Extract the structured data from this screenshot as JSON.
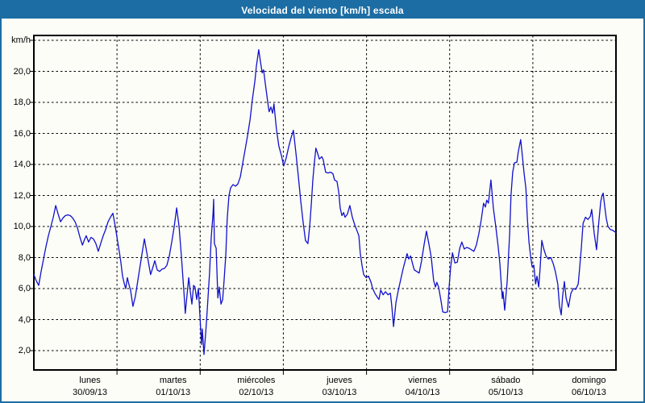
{
  "window": {
    "title": "Velocidad del viento [km/h] escala"
  },
  "colors": {
    "titlebar": "#1c6da3",
    "window_border": "#1c6da3",
    "background": "#fcfdf7",
    "line": "#1111cc",
    "grid": "#000000",
    "text": "#000000",
    "title_text": "#ffffff"
  },
  "chart_data": {
    "type": "line",
    "title": "Velocidad del viento [km/h] escala",
    "ylabel": "km/h",
    "xlabel": "",
    "grid": true,
    "xlim_hours": [
      0,
      168
    ],
    "ylim": [
      0.75,
      22.35
    ],
    "y_ticks": [
      {
        "value": 22,
        "label": "km/h"
      },
      {
        "value": 20,
        "label": "20,0"
      },
      {
        "value": 18,
        "label": "18,0"
      },
      {
        "value": 16,
        "label": "16,0"
      },
      {
        "value": 14,
        "label": "14,0"
      },
      {
        "value": 12,
        "label": "12,0"
      },
      {
        "value": 10,
        "label": "10,0"
      },
      {
        "value": 8,
        "label": "8,0"
      },
      {
        "value": 6,
        "label": "6,0"
      },
      {
        "value": 4,
        "label": "4,0"
      },
      {
        "value": 2,
        "label": "2,0"
      }
    ],
    "x_days": [
      {
        "name": "lunes",
        "date": "30/09/13"
      },
      {
        "name": "martes",
        "date": "01/10/13"
      },
      {
        "name": "miércoles",
        "date": "02/10/13"
      },
      {
        "name": "jueves",
        "date": "03/10/13"
      },
      {
        "name": "viernes",
        "date": "04/10/13"
      },
      {
        "name": "sábado",
        "date": "05/10/13"
      },
      {
        "name": "domingo",
        "date": "06/10/13"
      }
    ],
    "series": {
      "name": "velocidad del viento",
      "unit": "km/h",
      "x_unit": "hours since 30/09/13 00:00",
      "points": [
        [
          0,
          6.9
        ],
        [
          0.7,
          6.5
        ],
        [
          1.4,
          6.2
        ],
        [
          2.1,
          7.1
        ],
        [
          2.8,
          7.9
        ],
        [
          3.5,
          8.7
        ],
        [
          4.2,
          9.4
        ],
        [
          4.9,
          10.0
        ],
        [
          5.6,
          10.6
        ],
        [
          6.3,
          11.35
        ],
        [
          7,
          10.8
        ],
        [
          7.7,
          10.3
        ],
        [
          8.4,
          10.55
        ],
        [
          9.1,
          10.7
        ],
        [
          9.8,
          10.75
        ],
        [
          10.5,
          10.7
        ],
        [
          11.2,
          10.55
        ],
        [
          11.9,
          10.3
        ],
        [
          12.6,
          9.9
        ],
        [
          13.3,
          9.3
        ],
        [
          14,
          8.8
        ],
        [
          14.7,
          9.2
        ],
        [
          15.1,
          9.4
        ],
        [
          15.8,
          9.0
        ],
        [
          16.5,
          9.3
        ],
        [
          17.2,
          9.2
        ],
        [
          17.9,
          8.9
        ],
        [
          18.6,
          8.4
        ],
        [
          19.3,
          8.9
        ],
        [
          20,
          9.4
        ],
        [
          20.7,
          9.8
        ],
        [
          21.4,
          10.3
        ],
        [
          22.1,
          10.6
        ],
        [
          22.8,
          10.85
        ],
        [
          23.5,
          10.0
        ],
        [
          24,
          9.3
        ],
        [
          24.7,
          8.3
        ],
        [
          25.1,
          7.7
        ],
        [
          25.6,
          6.8
        ],
        [
          26.1,
          6.3
        ],
        [
          26.5,
          6.0
        ],
        [
          27,
          6.7
        ],
        [
          27.5,
          6.2
        ],
        [
          27.9,
          5.9
        ],
        [
          28.6,
          4.85
        ],
        [
          29.3,
          5.5
        ],
        [
          30,
          6.5
        ],
        [
          30.7,
          7.5
        ],
        [
          31.4,
          8.5
        ],
        [
          31.9,
          9.2
        ],
        [
          32.6,
          8.3
        ],
        [
          33.3,
          7.4
        ],
        [
          33.7,
          6.9
        ],
        [
          34.4,
          7.4
        ],
        [
          34.9,
          7.8
        ],
        [
          35.6,
          7.2
        ],
        [
          36.3,
          7.1
        ],
        [
          37,
          7.25
        ],
        [
          37.7,
          7.3
        ],
        [
          38.4,
          7.5
        ],
        [
          39.1,
          8.1
        ],
        [
          39.8,
          9.0
        ],
        [
          40.5,
          10.0
        ],
        [
          41.2,
          11.2
        ],
        [
          41.9,
          10.0
        ],
        [
          42.6,
          8.0
        ],
        [
          43.3,
          5.8
        ],
        [
          43.7,
          4.4
        ],
        [
          44.2,
          5.6
        ],
        [
          44.7,
          6.7
        ],
        [
          45.1,
          5.9
        ],
        [
          45.6,
          5.0
        ],
        [
          46.1,
          6.2
        ],
        [
          46.5,
          6.1
        ],
        [
          47,
          5.3
        ],
        [
          47.5,
          6.0
        ],
        [
          47.9,
          4.3
        ],
        [
          48.4,
          2.4
        ],
        [
          48.6,
          3.4
        ],
        [
          49.1,
          1.75
        ],
        [
          49.6,
          3.2
        ],
        [
          50,
          4.5
        ],
        [
          50.7,
          7.0
        ],
        [
          51.2,
          9.3
        ],
        [
          51.7,
          10.8
        ],
        [
          51.9,
          11.75
        ],
        [
          52.1,
          8.9
        ],
        [
          52.6,
          8.6
        ],
        [
          53.1,
          5.4
        ],
        [
          53.5,
          6.1
        ],
        [
          54,
          5.0
        ],
        [
          54.5,
          5.3
        ],
        [
          54.9,
          6.5
        ],
        [
          55.4,
          8.2
        ],
        [
          55.8,
          10.5
        ],
        [
          56.3,
          12.0
        ],
        [
          56.8,
          12.5
        ],
        [
          57.5,
          12.7
        ],
        [
          58.2,
          12.6
        ],
        [
          58.9,
          12.75
        ],
        [
          59.6,
          13.2
        ],
        [
          60.3,
          14.1
        ],
        [
          61,
          15.0
        ],
        [
          61.7,
          15.9
        ],
        [
          62.4,
          16.9
        ],
        [
          63,
          18.1
        ],
        [
          63.8,
          19.4
        ],
        [
          64.2,
          20.3
        ],
        [
          64.9,
          21.4
        ],
        [
          65.4,
          20.6
        ],
        [
          65.9,
          19.9
        ],
        [
          66.3,
          20.1
        ],
        [
          66.8,
          19.2
        ],
        [
          67.5,
          18.0
        ],
        [
          67.9,
          17.4
        ],
        [
          68.4,
          17.7
        ],
        [
          68.9,
          17.3
        ],
        [
          69.3,
          17.9
        ],
        [
          70,
          16.3
        ],
        [
          70.7,
          15.2
        ],
        [
          71.4,
          14.6
        ],
        [
          72.1,
          13.9
        ],
        [
          72.8,
          14.4
        ],
        [
          73.5,
          15.1
        ],
        [
          74.2,
          15.7
        ],
        [
          74.9,
          16.2
        ],
        [
          75.6,
          14.8
        ],
        [
          76.3,
          13.3
        ],
        [
          77,
          11.7
        ],
        [
          77.7,
          10.3
        ],
        [
          78.4,
          9.1
        ],
        [
          79.1,
          8.9
        ],
        [
          79.6,
          10.0
        ],
        [
          80.1,
          11.5
        ],
        [
          80.5,
          13.0
        ],
        [
          81,
          14.2
        ],
        [
          81.4,
          15.05
        ],
        [
          81.9,
          14.7
        ],
        [
          82.4,
          14.35
        ],
        [
          83.1,
          14.5
        ],
        [
          83.5,
          14.3
        ],
        [
          84.2,
          13.5
        ],
        [
          84.9,
          13.45
        ],
        [
          85.6,
          13.5
        ],
        [
          86.3,
          13.4
        ],
        [
          86.8,
          13.0
        ],
        [
          87.5,
          12.9
        ],
        [
          88,
          12.2
        ],
        [
          88.4,
          11.2
        ],
        [
          88.9,
          10.7
        ],
        [
          89.4,
          10.9
        ],
        [
          89.8,
          10.6
        ],
        [
          90.5,
          10.8
        ],
        [
          91.2,
          11.35
        ],
        [
          91.9,
          10.6
        ],
        [
          92.6,
          10.1
        ],
        [
          93.3,
          9.7
        ],
        [
          93.8,
          9.4
        ],
        [
          94.2,
          8.3
        ],
        [
          94.7,
          7.5
        ],
        [
          95.2,
          6.9
        ],
        [
          95.9,
          6.7
        ],
        [
          96.6,
          6.8
        ],
        [
          97.3,
          6.4
        ],
        [
          97.7,
          6.05
        ],
        [
          98.4,
          5.7
        ],
        [
          99.1,
          5.45
        ],
        [
          99.6,
          5.3
        ],
        [
          100.1,
          5.9
        ],
        [
          100.8,
          5.6
        ],
        [
          101.5,
          5.8
        ],
        [
          102.2,
          5.6
        ],
        [
          102.9,
          5.7
        ],
        [
          103.3,
          4.9
        ],
        [
          103.8,
          3.55
        ],
        [
          104.5,
          5.1
        ],
        [
          105.2,
          5.9
        ],
        [
          105.9,
          6.6
        ],
        [
          106.6,
          7.3
        ],
        [
          107.3,
          7.9
        ],
        [
          107.7,
          8.25
        ],
        [
          108.2,
          7.9
        ],
        [
          108.7,
          8.1
        ],
        [
          109.4,
          7.5
        ],
        [
          109.8,
          7.2
        ],
        [
          110.5,
          7.1
        ],
        [
          111.2,
          7.0
        ],
        [
          111.9,
          7.8
        ],
        [
          112.6,
          8.8
        ],
        [
          113.3,
          9.7
        ],
        [
          114,
          8.9
        ],
        [
          114.7,
          8.0
        ],
        [
          115.4,
          6.5
        ],
        [
          115.9,
          6.1
        ],
        [
          116.3,
          6.4
        ],
        [
          116.8,
          6.1
        ],
        [
          117.5,
          5.2
        ],
        [
          118,
          4.5
        ],
        [
          118.7,
          4.45
        ],
        [
          119.4,
          4.5
        ],
        [
          119.8,
          6.0
        ],
        [
          120.3,
          7.4
        ],
        [
          120.8,
          8.3
        ],
        [
          121.5,
          7.65
        ],
        [
          122.2,
          7.7
        ],
        [
          122.9,
          8.6
        ],
        [
          123.5,
          9.0
        ],
        [
          124.2,
          8.55
        ],
        [
          124.9,
          8.65
        ],
        [
          125.6,
          8.6
        ],
        [
          126.3,
          8.5
        ],
        [
          127,
          8.4
        ],
        [
          127.7,
          8.8
        ],
        [
          128.4,
          9.5
        ],
        [
          129.1,
          10.4
        ],
        [
          129.8,
          11.5
        ],
        [
          130.3,
          11.25
        ],
        [
          130.7,
          11.7
        ],
        [
          131.2,
          11.5
        ],
        [
          131.9,
          13.0
        ],
        [
          132.6,
          11.2
        ],
        [
          133.3,
          10.0
        ],
        [
          134,
          8.7
        ],
        [
          134.5,
          7.6
        ],
        [
          134.9,
          6.3
        ],
        [
          135.2,
          5.35
        ],
        [
          135.4,
          5.8
        ],
        [
          135.9,
          4.6
        ],
        [
          136.6,
          6.5
        ],
        [
          137.3,
          9.5
        ],
        [
          137.7,
          12.0
        ],
        [
          138.2,
          13.5
        ],
        [
          138.7,
          14.1
        ],
        [
          139.4,
          14.15
        ],
        [
          139.8,
          14.8
        ],
        [
          140.5,
          15.6
        ],
        [
          141,
          14.5
        ],
        [
          141.5,
          13.4
        ],
        [
          142,
          12.45
        ],
        [
          142.4,
          10.6
        ],
        [
          142.9,
          9.0
        ],
        [
          143.4,
          8.0
        ],
        [
          143.8,
          7.4
        ],
        [
          144.3,
          7.5
        ],
        [
          144.8,
          6.3
        ],
        [
          145.2,
          6.8
        ],
        [
          145.7,
          6.1
        ],
        [
          146.1,
          7.3
        ],
        [
          146.6,
          9.1
        ],
        [
          147.1,
          8.6
        ],
        [
          147.8,
          8.1
        ],
        [
          148.5,
          7.9
        ],
        [
          149.2,
          8.0
        ],
        [
          149.9,
          7.6
        ],
        [
          150.5,
          7.1
        ],
        [
          151.2,
          6.3
        ],
        [
          151.7,
          4.9
        ],
        [
          152.2,
          4.3
        ],
        [
          152.6,
          5.5
        ],
        [
          153.1,
          6.45
        ],
        [
          153.6,
          5.4
        ],
        [
          154.3,
          4.8
        ],
        [
          155,
          5.7
        ],
        [
          155.7,
          6.0
        ],
        [
          156.4,
          5.95
        ],
        [
          157.1,
          6.3
        ],
        [
          157.5,
          7.3
        ],
        [
          158,
          8.6
        ],
        [
          158.5,
          10.2
        ],
        [
          159.2,
          10.6
        ],
        [
          159.9,
          10.45
        ],
        [
          160.6,
          10.65
        ],
        [
          161,
          11.1
        ],
        [
          161.7,
          9.6
        ],
        [
          162.4,
          8.5
        ],
        [
          163.1,
          10.4
        ],
        [
          163.6,
          11.6
        ],
        [
          164,
          12.0
        ],
        [
          164.3,
          12.15
        ],
        [
          164.7,
          11.4
        ],
        [
          165.2,
          10.5
        ],
        [
          165.7,
          10.0
        ],
        [
          166.4,
          9.8
        ],
        [
          167.1,
          9.75
        ],
        [
          168,
          9.6
        ]
      ]
    }
  }
}
